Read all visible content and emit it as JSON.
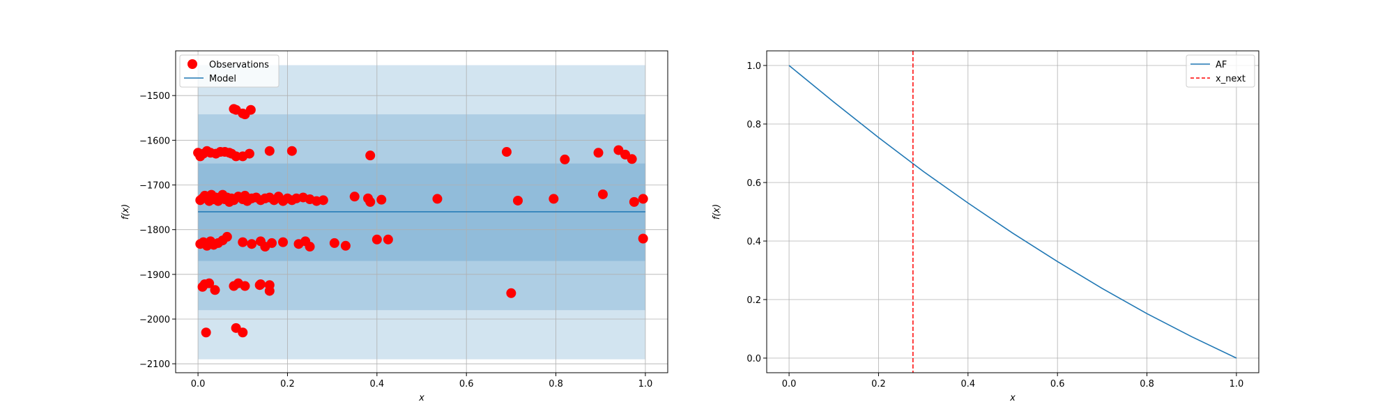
{
  "chart_data": [
    {
      "type": "scatter",
      "title": "",
      "xlabel": "x",
      "ylabel": "f(x)",
      "xlim": [
        -0.05,
        1.05
      ],
      "ylim": [
        -2120,
        -1400
      ],
      "xticks": [
        0.0,
        0.2,
        0.4,
        0.6,
        0.8,
        1.0
      ],
      "xtick_labels": [
        "0.0",
        "0.2",
        "0.4",
        "0.6",
        "0.8",
        "1.0"
      ],
      "yticks": [
        -2100,
        -2000,
        -1900,
        -1800,
        -1700,
        -1600,
        -1500
      ],
      "ytick_labels": [
        "−2100",
        "−2000",
        "−1900",
        "−1800",
        "−1700",
        "−1600",
        "−1500"
      ],
      "grid": true,
      "legend_position": "top-left",
      "legend": [
        "Observations",
        "Model"
      ],
      "colors": {
        "observations": "#ff0000",
        "model": "#1f77b4",
        "band": "#1f77b4"
      },
      "model": {
        "x": [
          0.0,
          1.0
        ],
        "y": [
          -1760,
          -1760
        ]
      },
      "bands": [
        {
          "lower": -2090,
          "upper": -1432
        },
        {
          "lower": -1980,
          "upper": -1542
        },
        {
          "lower": -1870,
          "upper": -1652
        }
      ],
      "series": [
        {
          "name": "Observations",
          "x": [
            0.0,
            0.005,
            0.012,
            0.02,
            0.028,
            0.04,
            0.05,
            0.06,
            0.07,
            0.075,
            0.085,
            0.1,
            0.115,
            0.16,
            0.21,
            0.385,
            0.69,
            0.82,
            0.895,
            0.94,
            0.955,
            0.97,
            0.005,
            0.01,
            0.015,
            0.02,
            0.025,
            0.03,
            0.035,
            0.04,
            0.045,
            0.05,
            0.055,
            0.06,
            0.065,
            0.07,
            0.075,
            0.08,
            0.09,
            0.1,
            0.105,
            0.11,
            0.12,
            0.13,
            0.14,
            0.15,
            0.16,
            0.17,
            0.18,
            0.19,
            0.2,
            0.21,
            0.22,
            0.235,
            0.25,
            0.265,
            0.28,
            0.35,
            0.38,
            0.385,
            0.41,
            0.535,
            0.715,
            0.795,
            0.905,
            0.975,
            0.995,
            0.005,
            0.012,
            0.02,
            0.028,
            0.035,
            0.045,
            0.055,
            0.065,
            0.1,
            0.12,
            0.14,
            0.15,
            0.165,
            0.19,
            0.225,
            0.24,
            0.25,
            0.305,
            0.33,
            0.4,
            0.425,
            0.995,
            0.01,
            0.015,
            0.025,
            0.038,
            0.08,
            0.09,
            0.105,
            0.14,
            0.16,
            0.7,
            0.138,
            0.16,
            0.08,
            0.1,
            0.118,
            0.105,
            0.085,
            0.018,
            0.085,
            0.1
          ],
          "y": [
            -1628,
            -1636,
            -1630,
            -1624,
            -1628,
            -1630,
            -1626,
            -1626,
            -1628,
            -1630,
            -1636,
            -1636,
            -1630,
            -1624,
            -1624,
            -1634,
            -1626,
            -1643,
            -1628,
            -1622,
            -1632,
            -1642,
            -1734,
            -1730,
            -1724,
            -1730,
            -1736,
            -1722,
            -1732,
            -1728,
            -1736,
            -1730,
            -1722,
            -1732,
            -1728,
            -1738,
            -1730,
            -1734,
            -1726,
            -1732,
            -1724,
            -1736,
            -1730,
            -1728,
            -1734,
            -1730,
            -1728,
            -1734,
            -1726,
            -1736,
            -1730,
            -1734,
            -1730,
            -1728,
            -1732,
            -1736,
            -1734,
            -1726,
            -1730,
            -1738,
            -1733,
            -1731,
            -1735,
            -1731,
            -1721,
            -1738,
            -1731,
            -1832,
            -1828,
            -1836,
            -1826,
            -1834,
            -1830,
            -1824,
            -1816,
            -1828,
            -1832,
            -1826,
            -1838,
            -1830,
            -1828,
            -1832,
            -1826,
            -1838,
            -1830,
            -1836,
            -1822,
            -1822,
            -1820,
            -1928,
            -1922,
            -1920,
            -1935,
            -1926,
            -1920,
            -1926,
            -1922,
            -1937,
            -1942,
            -1924,
            -1924,
            -1530,
            -1540,
            -1532,
            -1542,
            -1532,
            -2030,
            -2020,
            -2030
          ]
        }
      ]
    },
    {
      "type": "line",
      "title": "",
      "xlabel": "x",
      "ylabel": "f(x)",
      "xlim": [
        -0.05,
        1.05
      ],
      "ylim": [
        -0.05,
        1.05
      ],
      "xticks": [
        0.0,
        0.2,
        0.4,
        0.6,
        0.8,
        1.0
      ],
      "xtick_labels": [
        "0.0",
        "0.2",
        "0.4",
        "0.6",
        "0.8",
        "1.0"
      ],
      "yticks": [
        0.0,
        0.2,
        0.4,
        0.6,
        0.8,
        1.0
      ],
      "ytick_labels": [
        "0.0",
        "0.2",
        "0.4",
        "0.6",
        "0.8",
        "1.0"
      ],
      "grid": true,
      "legend_position": "top-right",
      "legend": [
        "AF",
        "x_next"
      ],
      "colors": {
        "af": "#1f77b4",
        "x_next": "#ff0000"
      },
      "x_next": 0.277,
      "series": [
        {
          "name": "AF",
          "x": [
            0.0,
            0.1,
            0.2,
            0.3,
            0.4,
            0.5,
            0.6,
            0.7,
            0.8,
            0.9,
            1.0
          ],
          "y": [
            1.0,
            0.875,
            0.754,
            0.638,
            0.53,
            0.427,
            0.33,
            0.238,
            0.152,
            0.073,
            0.0
          ]
        }
      ]
    }
  ]
}
